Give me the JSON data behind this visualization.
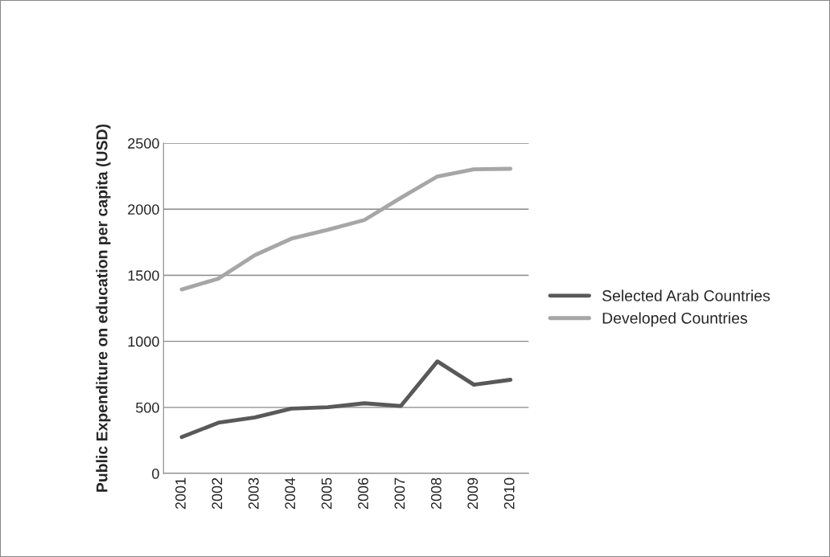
{
  "chart_data": {
    "type": "line",
    "ylabel": "Public Expenditure on education per capita (USD)",
    "categories": [
      "2001",
      "2002",
      "2003",
      "2004",
      "2005",
      "2006",
      "2007",
      "2008",
      "2009",
      "2010"
    ],
    "series": [
      {
        "name": "Selected Arab Countries",
        "color": "#595959",
        "values": [
          275,
          384,
          424,
          491,
          501,
          531,
          511,
          848,
          672,
          709
        ]
      },
      {
        "name": "Developed Countries",
        "color": "#a6a6a6",
        "values": [
          1393,
          1474,
          1652,
          1777,
          1844,
          1918,
          2086,
          2248,
          2302,
          2306
        ]
      }
    ],
    "ylim": [
      0,
      2500
    ],
    "yticks": [
      0,
      500,
      1000,
      1500,
      2000,
      2500
    ],
    "grid": "y",
    "legend": "right",
    "marker": "none",
    "line_style": "solid"
  }
}
